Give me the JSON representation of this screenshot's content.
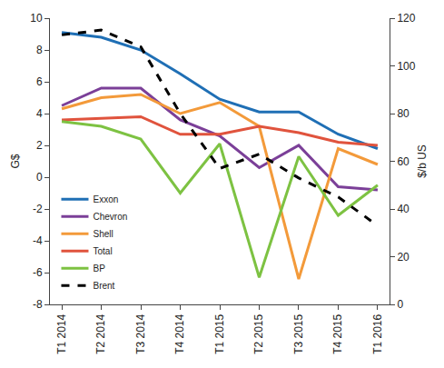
{
  "chart_data": {
    "type": "line",
    "y_label": "G$",
    "y2_label": "$/b US",
    "categories": [
      "T1 2014",
      "T2 2014",
      "T3 2014",
      "T4 2014",
      "T1 2015",
      "T2 2015",
      "T3 2015",
      "T4 2015",
      "T1 2016"
    ],
    "series": [
      {
        "name": "Exxon",
        "color": "#1f6fb5",
        "line_style": "solid",
        "values": [
          9.1,
          8.8,
          8.0,
          6.5,
          4.9,
          4.1,
          4.1,
          2.7,
          1.8
        ]
      },
      {
        "name": "Chevron",
        "color": "#7b3f98",
        "line_style": "solid",
        "values": [
          4.5,
          5.6,
          5.6,
          3.6,
          2.6,
          0.6,
          2.0,
          -0.6,
          -0.8
        ]
      },
      {
        "name": "Shell",
        "color": "#f39a3a",
        "line_style": "solid",
        "values": [
          4.3,
          5.0,
          5.2,
          4.0,
          4.7,
          3.2,
          -6.4,
          1.8,
          0.8
        ]
      },
      {
        "name": "Total",
        "color": "#e0533d",
        "line_style": "solid",
        "values": [
          3.6,
          3.7,
          3.8,
          2.7,
          2.7,
          3.2,
          2.8,
          2.2,
          2.0
        ]
      },
      {
        "name": "BP",
        "color": "#7dc242",
        "line_style": "solid",
        "values": [
          3.5,
          3.2,
          2.4,
          -1.0,
          2.1,
          -6.3,
          1.3,
          -2.4,
          -0.5
        ]
      },
      {
        "name": "Brent",
        "color": "#000000",
        "line_style": "dashed",
        "axis": "y2",
        "values": [
          113,
          115,
          108,
          80,
          57,
          63,
          53,
          45,
          33
        ]
      }
    ],
    "ylim": [
      -8,
      10
    ],
    "yticks": [
      -8,
      -6,
      -4,
      -2,
      0,
      2,
      4,
      6,
      8,
      10
    ],
    "y2lim": [
      0,
      120
    ],
    "y2ticks": [
      0,
      20,
      40,
      60,
      80,
      100,
      120
    ],
    "grid": false,
    "legend": "lower left"
  }
}
